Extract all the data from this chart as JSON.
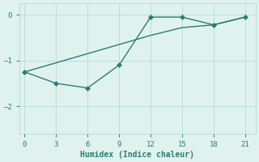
{
  "line1_x": [
    0,
    3,
    6,
    9,
    12,
    15,
    18,
    21
  ],
  "line1_y": [
    -1.25,
    -1.5,
    -1.6,
    -1.1,
    -0.05,
    -0.05,
    -0.22,
    -0.05
  ],
  "line2_x": [
    0,
    3,
    6,
    9,
    12,
    15,
    18,
    21
  ],
  "line2_y": [
    -1.25,
    -1.05,
    -0.85,
    -0.65,
    -0.45,
    -0.28,
    -0.22,
    -0.05
  ],
  "xlabel": "Humidex (Indice chaleur)",
  "xlim": [
    -0.5,
    22
  ],
  "ylim": [
    -2.6,
    0.25
  ],
  "yticks": [
    0,
    -1,
    -2
  ],
  "xticks": [
    0,
    3,
    6,
    9,
    12,
    15,
    18,
    21
  ],
  "line_color": "#2a7d72",
  "bg_color": "#dff2ee",
  "grid_color": "#b5ddd7",
  "markersize": 3,
  "linewidth": 1.0
}
